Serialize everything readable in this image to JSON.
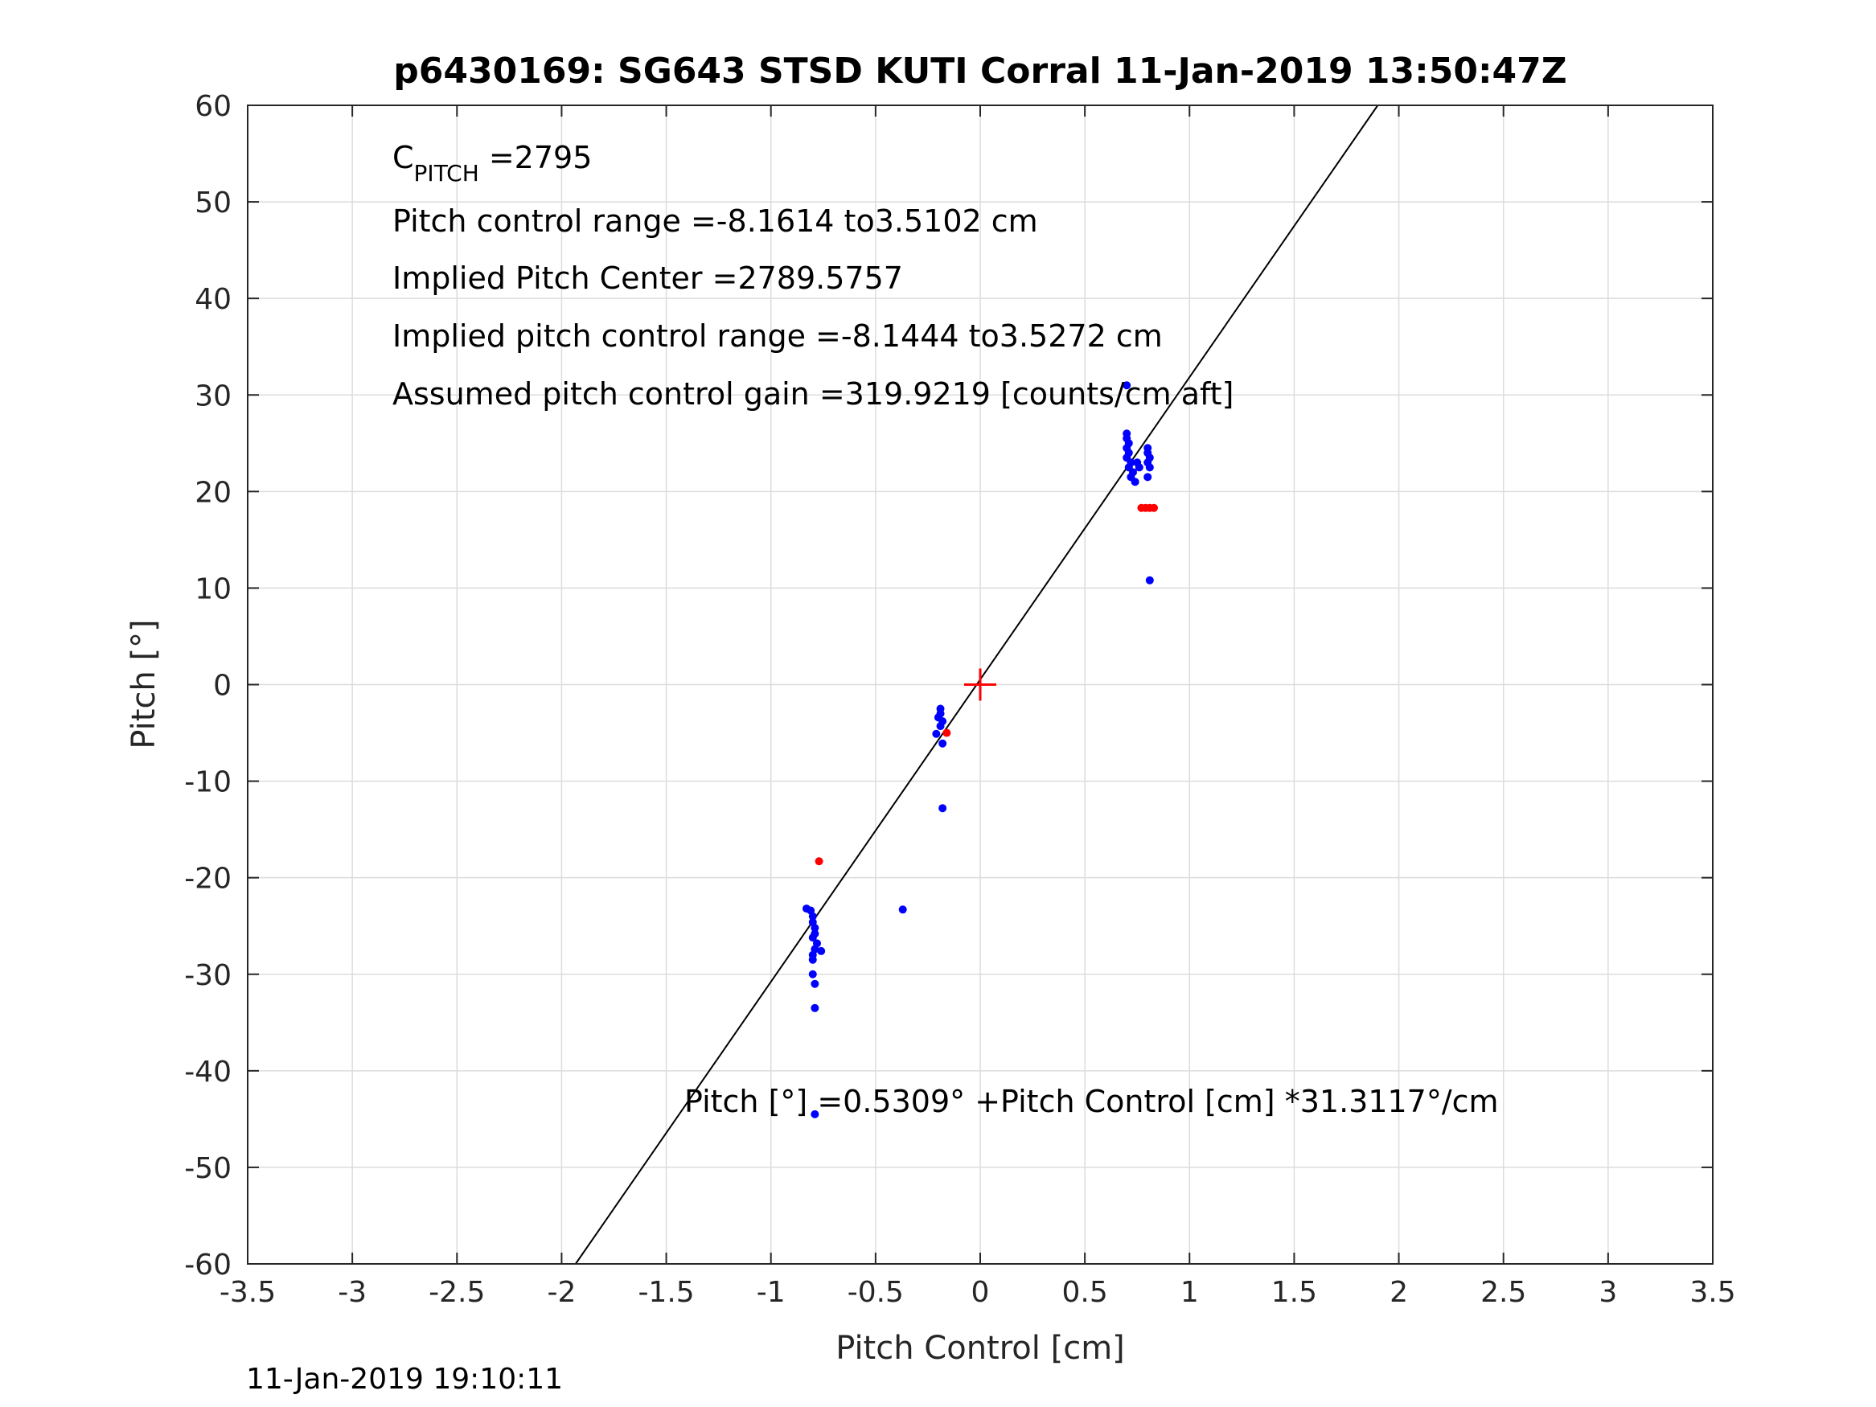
{
  "chart_data": {
    "type": "scatter",
    "title": "p6430169: SG643 STSD KUTI Corral 11-Jan-2019 13:50:47Z",
    "xlabel": "Pitch Control [cm]",
    "ylabel": "Pitch [°]",
    "xlim": [
      -3.5,
      3.5
    ],
    "ylim": [
      -60,
      60
    ],
    "xticks": [
      -3.5,
      -3,
      -2.5,
      -2,
      -1.5,
      -1,
      -0.5,
      0,
      0.5,
      1,
      1.5,
      2,
      2.5,
      3,
      3.5
    ],
    "xtick_labels": [
      "-3.5",
      "-3",
      "-2.5",
      "-2",
      "-1.5",
      "-1",
      "-0.5",
      "0",
      "0.5",
      "1",
      "1.5",
      "2",
      "2.5",
      "3",
      "3.5"
    ],
    "yticks": [
      -60,
      -50,
      -40,
      -30,
      -20,
      -10,
      0,
      10,
      20,
      30,
      40,
      50,
      60
    ],
    "ytick_labels": [
      "-60",
      "-50",
      "-40",
      "-30",
      "-20",
      "-10",
      "0",
      "10",
      "20",
      "30",
      "40",
      "50",
      "60"
    ],
    "grid": true,
    "fit_line": {
      "intercept": 0.5309,
      "slope": 31.3117,
      "color": "#000000"
    },
    "center_marker": {
      "x": 0.0,
      "y": 0.0,
      "color": "#ff0000"
    },
    "series": [
      {
        "color": "#0000ff",
        "points": [
          [
            0.7,
            31.0
          ],
          [
            0.7,
            26.0
          ],
          [
            0.7,
            25.5
          ],
          [
            0.71,
            25.0
          ],
          [
            0.7,
            24.5
          ],
          [
            0.71,
            24.0
          ],
          [
            0.7,
            23.5
          ],
          [
            0.72,
            23.0
          ],
          [
            0.71,
            22.5
          ],
          [
            0.73,
            22.0
          ],
          [
            0.72,
            21.5
          ],
          [
            0.74,
            21.0
          ],
          [
            0.75,
            23.0
          ],
          [
            0.76,
            22.5
          ],
          [
            0.8,
            24.5
          ],
          [
            0.8,
            24.0
          ],
          [
            0.81,
            23.5
          ],
          [
            0.8,
            23.0
          ],
          [
            0.81,
            22.5
          ],
          [
            0.8,
            21.5
          ],
          [
            0.81,
            10.8
          ],
          [
            -0.19,
            -2.5
          ],
          [
            -0.19,
            -3.0
          ],
          [
            -0.2,
            -3.4
          ],
          [
            -0.18,
            -3.8
          ],
          [
            -0.19,
            -4.3
          ],
          [
            -0.21,
            -5.1
          ],
          [
            -0.18,
            -6.1
          ],
          [
            -0.18,
            -12.8
          ],
          [
            -0.37,
            -23.3
          ],
          [
            -0.83,
            -23.2
          ],
          [
            -0.81,
            -23.4
          ],
          [
            -0.8,
            -24.0
          ],
          [
            -0.8,
            -24.6
          ],
          [
            -0.79,
            -25.2
          ],
          [
            -0.79,
            -25.8
          ],
          [
            -0.8,
            -26.2
          ],
          [
            -0.78,
            -26.8
          ],
          [
            -0.79,
            -27.4
          ],
          [
            -0.76,
            -27.6
          ],
          [
            -0.8,
            -28.0
          ],
          [
            -0.8,
            -28.5
          ],
          [
            -0.8,
            -30.0
          ],
          [
            -0.79,
            -31.0
          ],
          [
            -0.79,
            -33.5
          ],
          [
            -0.79,
            -44.5
          ]
        ]
      },
      {
        "color": "#ff0000",
        "points": [
          [
            0.77,
            18.3
          ],
          [
            0.79,
            18.3
          ],
          [
            0.81,
            18.3
          ],
          [
            0.83,
            18.3
          ],
          [
            -0.16,
            -5.0
          ],
          [
            -0.77,
            -18.3
          ]
        ]
      }
    ],
    "annotations": {
      "c_pitch_main": "C",
      "c_pitch_sub": "PITCH",
      "c_pitch_value": " =2795",
      "line2": "Pitch control range =-8.1614 to3.5102 cm",
      "line3": "Implied Pitch Center =2789.5757",
      "line4": "Implied pitch control range =-8.1444 to3.5272 cm",
      "line5": "Assumed pitch control gain =319.9219 [counts/cm aft]",
      "fit_equation": "Pitch [°] =0.5309° +Pitch Control [cm] *31.3117°/cm"
    }
  },
  "footer": {
    "timestamp": "11-Jan-2019 19:10:11"
  }
}
